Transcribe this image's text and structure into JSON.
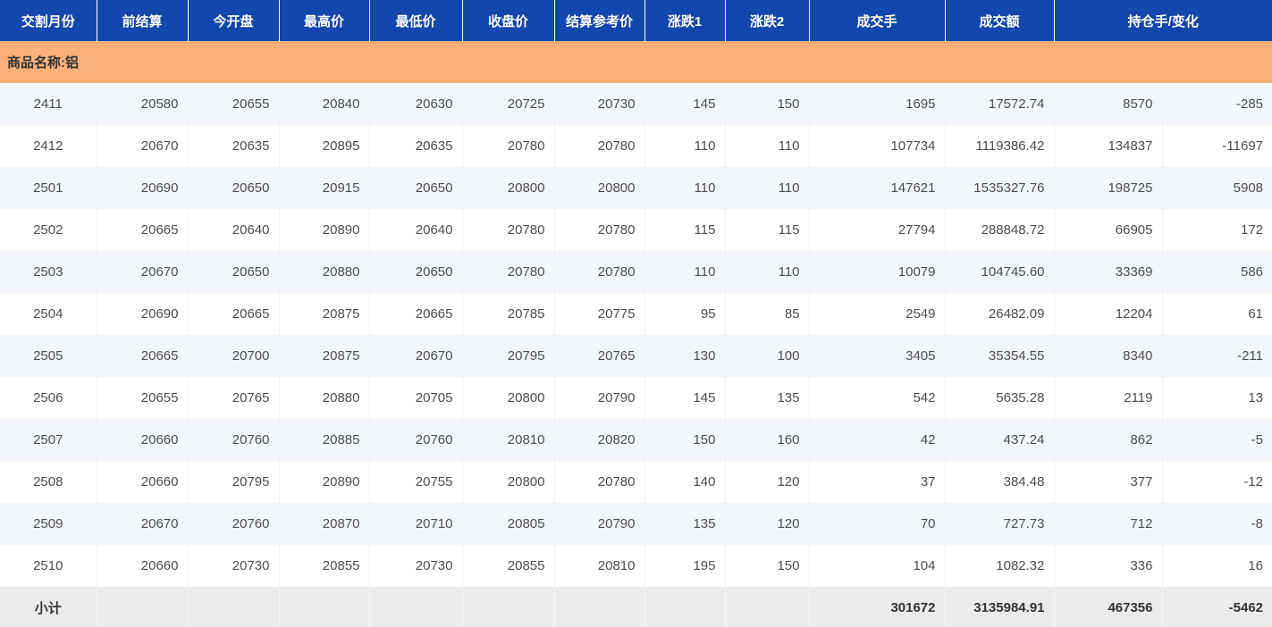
{
  "table": {
    "headers": [
      "交割月份",
      "前结算",
      "今开盘",
      "最高价",
      "最低价",
      "收盘价",
      "结算参考价",
      "涨跌1",
      "涨跌2",
      "成交手",
      "成交额",
      "持仓手/变化"
    ],
    "banner": "商品名称:铝",
    "rows": [
      [
        "2411",
        "20580",
        "20655",
        "20840",
        "20630",
        "20725",
        "20730",
        "145",
        "150",
        "1695",
        "17572.74",
        "8570",
        "-285"
      ],
      [
        "2412",
        "20670",
        "20635",
        "20895",
        "20635",
        "20780",
        "20780",
        "110",
        "110",
        "107734",
        "1119386.42",
        "134837",
        "-11697"
      ],
      [
        "2501",
        "20690",
        "20650",
        "20915",
        "20650",
        "20800",
        "20800",
        "110",
        "110",
        "147621",
        "1535327.76",
        "198725",
        "5908"
      ],
      [
        "2502",
        "20665",
        "20640",
        "20890",
        "20640",
        "20780",
        "20780",
        "115",
        "115",
        "27794",
        "288848.72",
        "66905",
        "172"
      ],
      [
        "2503",
        "20670",
        "20650",
        "20880",
        "20650",
        "20780",
        "20780",
        "110",
        "110",
        "10079",
        "104745.60",
        "33369",
        "586"
      ],
      [
        "2504",
        "20690",
        "20665",
        "20875",
        "20665",
        "20785",
        "20775",
        "95",
        "85",
        "2549",
        "26482.09",
        "12204",
        "61"
      ],
      [
        "2505",
        "20665",
        "20700",
        "20875",
        "20670",
        "20795",
        "20765",
        "130",
        "100",
        "3405",
        "35354.55",
        "8340",
        "-211"
      ],
      [
        "2506",
        "20655",
        "20765",
        "20880",
        "20705",
        "20800",
        "20790",
        "145",
        "135",
        "542",
        "5635.28",
        "2119",
        "13"
      ],
      [
        "2507",
        "20660",
        "20760",
        "20885",
        "20760",
        "20810",
        "20820",
        "150",
        "160",
        "42",
        "437.24",
        "862",
        "-5"
      ],
      [
        "2508",
        "20660",
        "20795",
        "20890",
        "20755",
        "20800",
        "20780",
        "140",
        "120",
        "37",
        "384.48",
        "377",
        "-12"
      ],
      [
        "2509",
        "20670",
        "20760",
        "20870",
        "20710",
        "20805",
        "20790",
        "135",
        "120",
        "70",
        "727.73",
        "712",
        "-8"
      ],
      [
        "2510",
        "20660",
        "20730",
        "20855",
        "20730",
        "20855",
        "20810",
        "195",
        "150",
        "104",
        "1082.32",
        "336",
        "16"
      ]
    ],
    "subtotal": {
      "label": "小计",
      "volume": "301672",
      "turnover": "3135984.91",
      "open_interest": "467356",
      "change": "-5462"
    }
  },
  "colors": {
    "header_bg": "#1347ad",
    "banner_bg": "#f9b179",
    "alt_row_bg": "#f3f6fb",
    "subtotal_bg": "#ebebeb",
    "header_text": "#ffffff",
    "data_text": "#4d4d4d"
  }
}
